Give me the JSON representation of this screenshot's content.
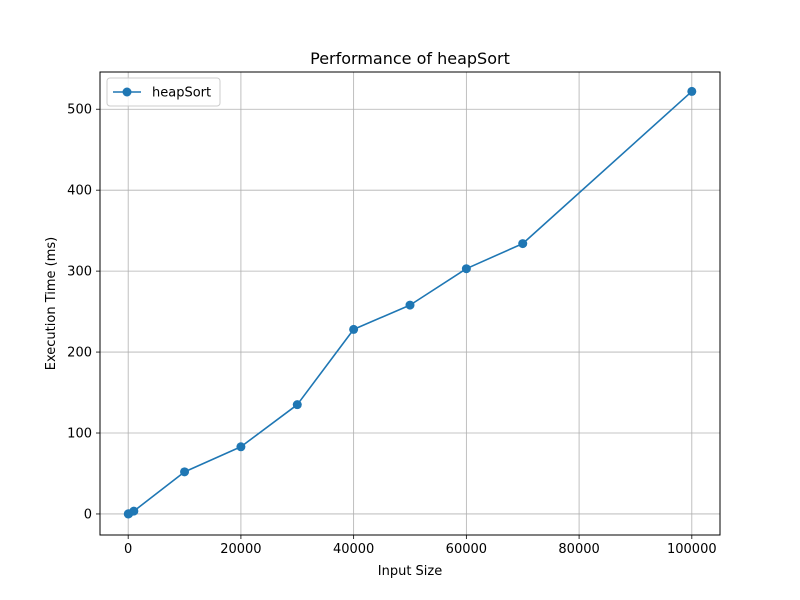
{
  "chart_data": {
    "type": "line",
    "title": "Performance of heapSort",
    "xlabel": "Input Size",
    "ylabel": "Execution Time (ms)",
    "xlim": [
      -5000,
      105000
    ],
    "ylim": [
      -26,
      546
    ],
    "xticks": [
      0,
      20000,
      40000,
      60000,
      80000,
      100000
    ],
    "yticks": [
      0,
      100,
      200,
      300,
      400,
      500
    ],
    "grid": true,
    "legend_position": "top-left",
    "series": [
      {
        "name": "heapSort",
        "color": "#1f77b4",
        "marker": "circle",
        "x": [
          10,
          100,
          1000,
          10000,
          20000,
          30000,
          40000,
          50000,
          60000,
          70000,
          100000
        ],
        "y": [
          0,
          0.3,
          3.5,
          52,
          83,
          135,
          228,
          258,
          303,
          334,
          522
        ]
      }
    ]
  }
}
